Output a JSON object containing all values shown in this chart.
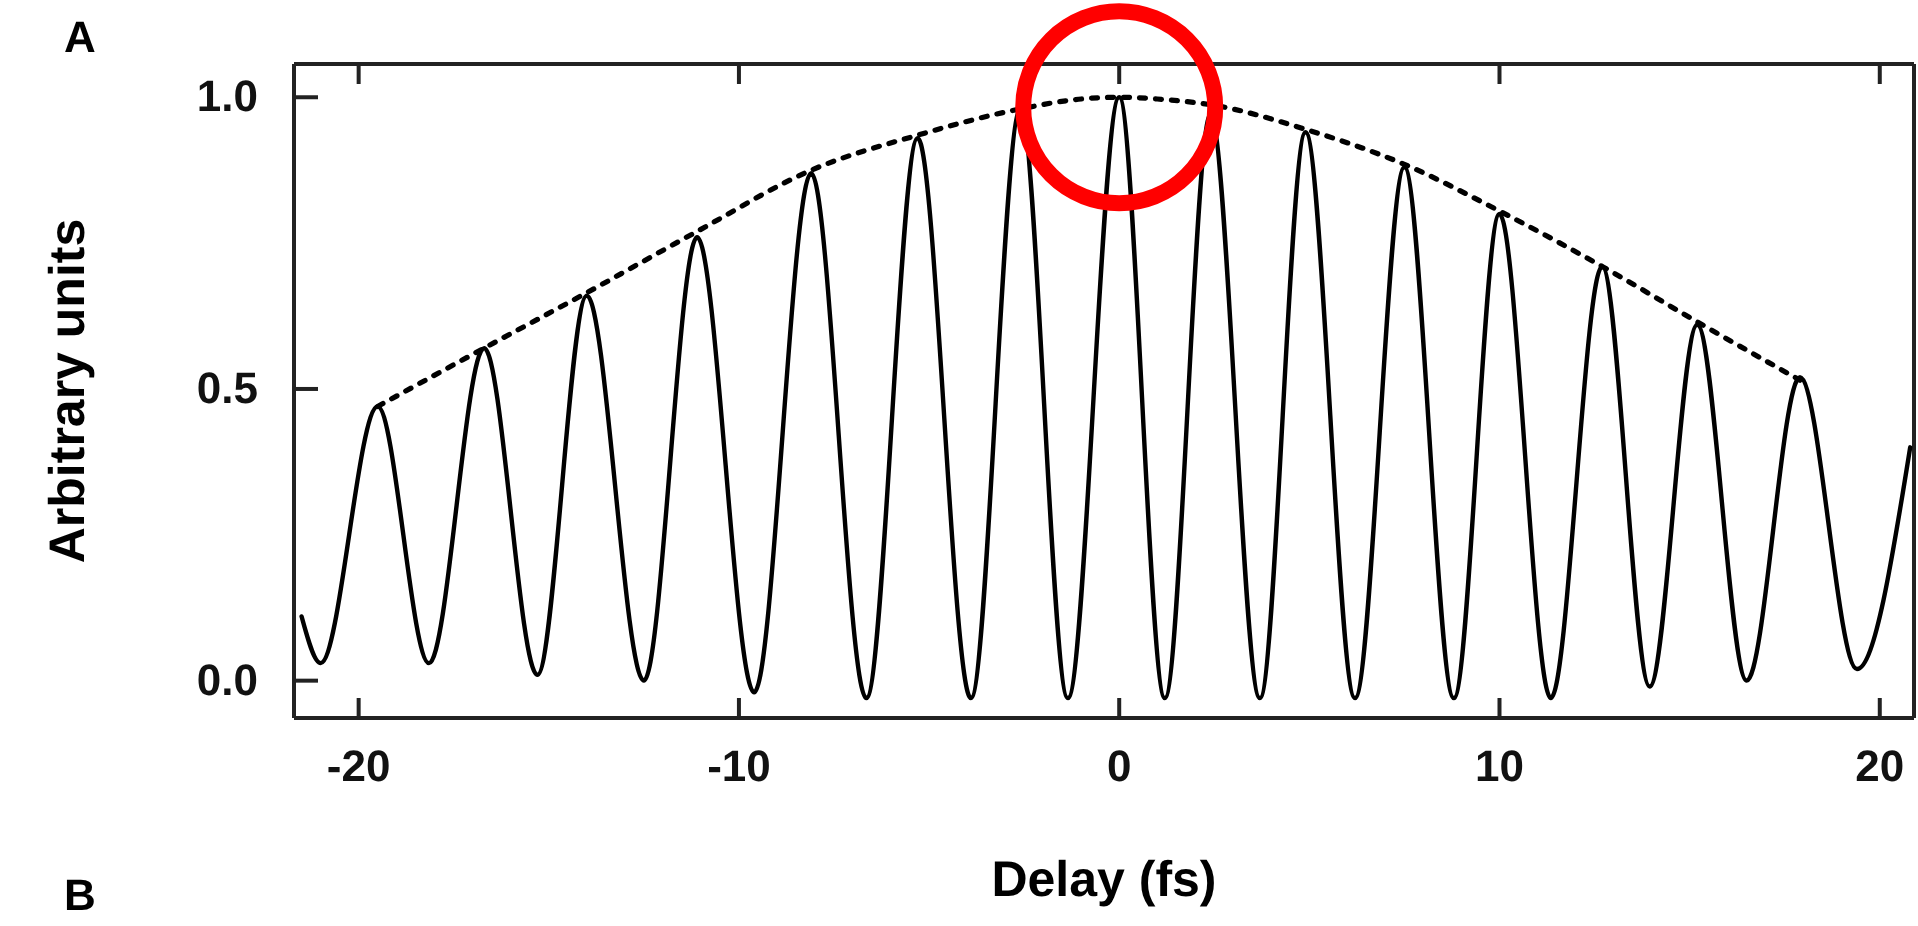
{
  "chart_data": {
    "type": "line",
    "xlabel": "Delay (fs)",
    "ylabel": "Arbitrary units",
    "annotations": [
      "A",
      "B"
    ],
    "xlim": [
      -21.7,
      20.9
    ],
    "ylim": [
      -0.064,
      1.057
    ],
    "xticks": [
      -20,
      -10,
      0,
      10,
      20
    ],
    "yticks": [
      {
        "value": 0,
        "label": "0.0"
      },
      {
        "value": 0.5,
        "label": "0.5"
      },
      {
        "value": 1,
        "label": "1.0"
      }
    ],
    "marker": "none",
    "series": [
      {
        "color": "#000000",
        "line_style": "solid",
        "x": [
          -21.5,
          -21.0,
          -19.5,
          -18.15,
          -16.7,
          -15.3,
          -14.0,
          -12.5,
          -11.1,
          -9.6,
          -8.1,
          -6.65,
          -5.3,
          -3.9,
          -2.6,
          -1.35,
          0,
          1.2,
          2.4,
          3.7,
          4.9,
          6.2,
          7.5,
          8.8,
          10.0,
          11.35,
          12.7,
          13.95,
          15.2,
          16.5,
          17.9,
          19.4,
          20.8
        ],
        "values": [
          0.11,
          0.03,
          0.47,
          0.03,
          0.57,
          0.01,
          0.66,
          0.0,
          0.76,
          -0.02,
          0.87,
          -0.03,
          0.93,
          -0.03,
          0.98,
          -0.03,
          1.0,
          -0.03,
          0.97,
          -0.03,
          0.94,
          -0.03,
          0.88,
          -0.03,
          0.8,
          -0.03,
          0.71,
          -0.01,
          0.61,
          0.0,
          0.52,
          0.02,
          0.4
        ]
      },
      {
        "color": "#000000",
        "line_style": "dotted",
        "x": [
          -19.5,
          -16.7,
          -14.0,
          -11.1,
          -8.1,
          -5.3,
          -2.6,
          -1.0,
          0,
          1.0,
          2.6,
          4.9,
          7.5,
          10.0,
          12.7,
          15.2,
          17.9
        ],
        "values": [
          0.47,
          0.57,
          0.665,
          0.77,
          0.875,
          0.935,
          0.98,
          0.997,
          1.0,
          0.997,
          0.985,
          0.945,
          0.885,
          0.805,
          0.71,
          0.615,
          0.515
        ]
      }
    ]
  }
}
